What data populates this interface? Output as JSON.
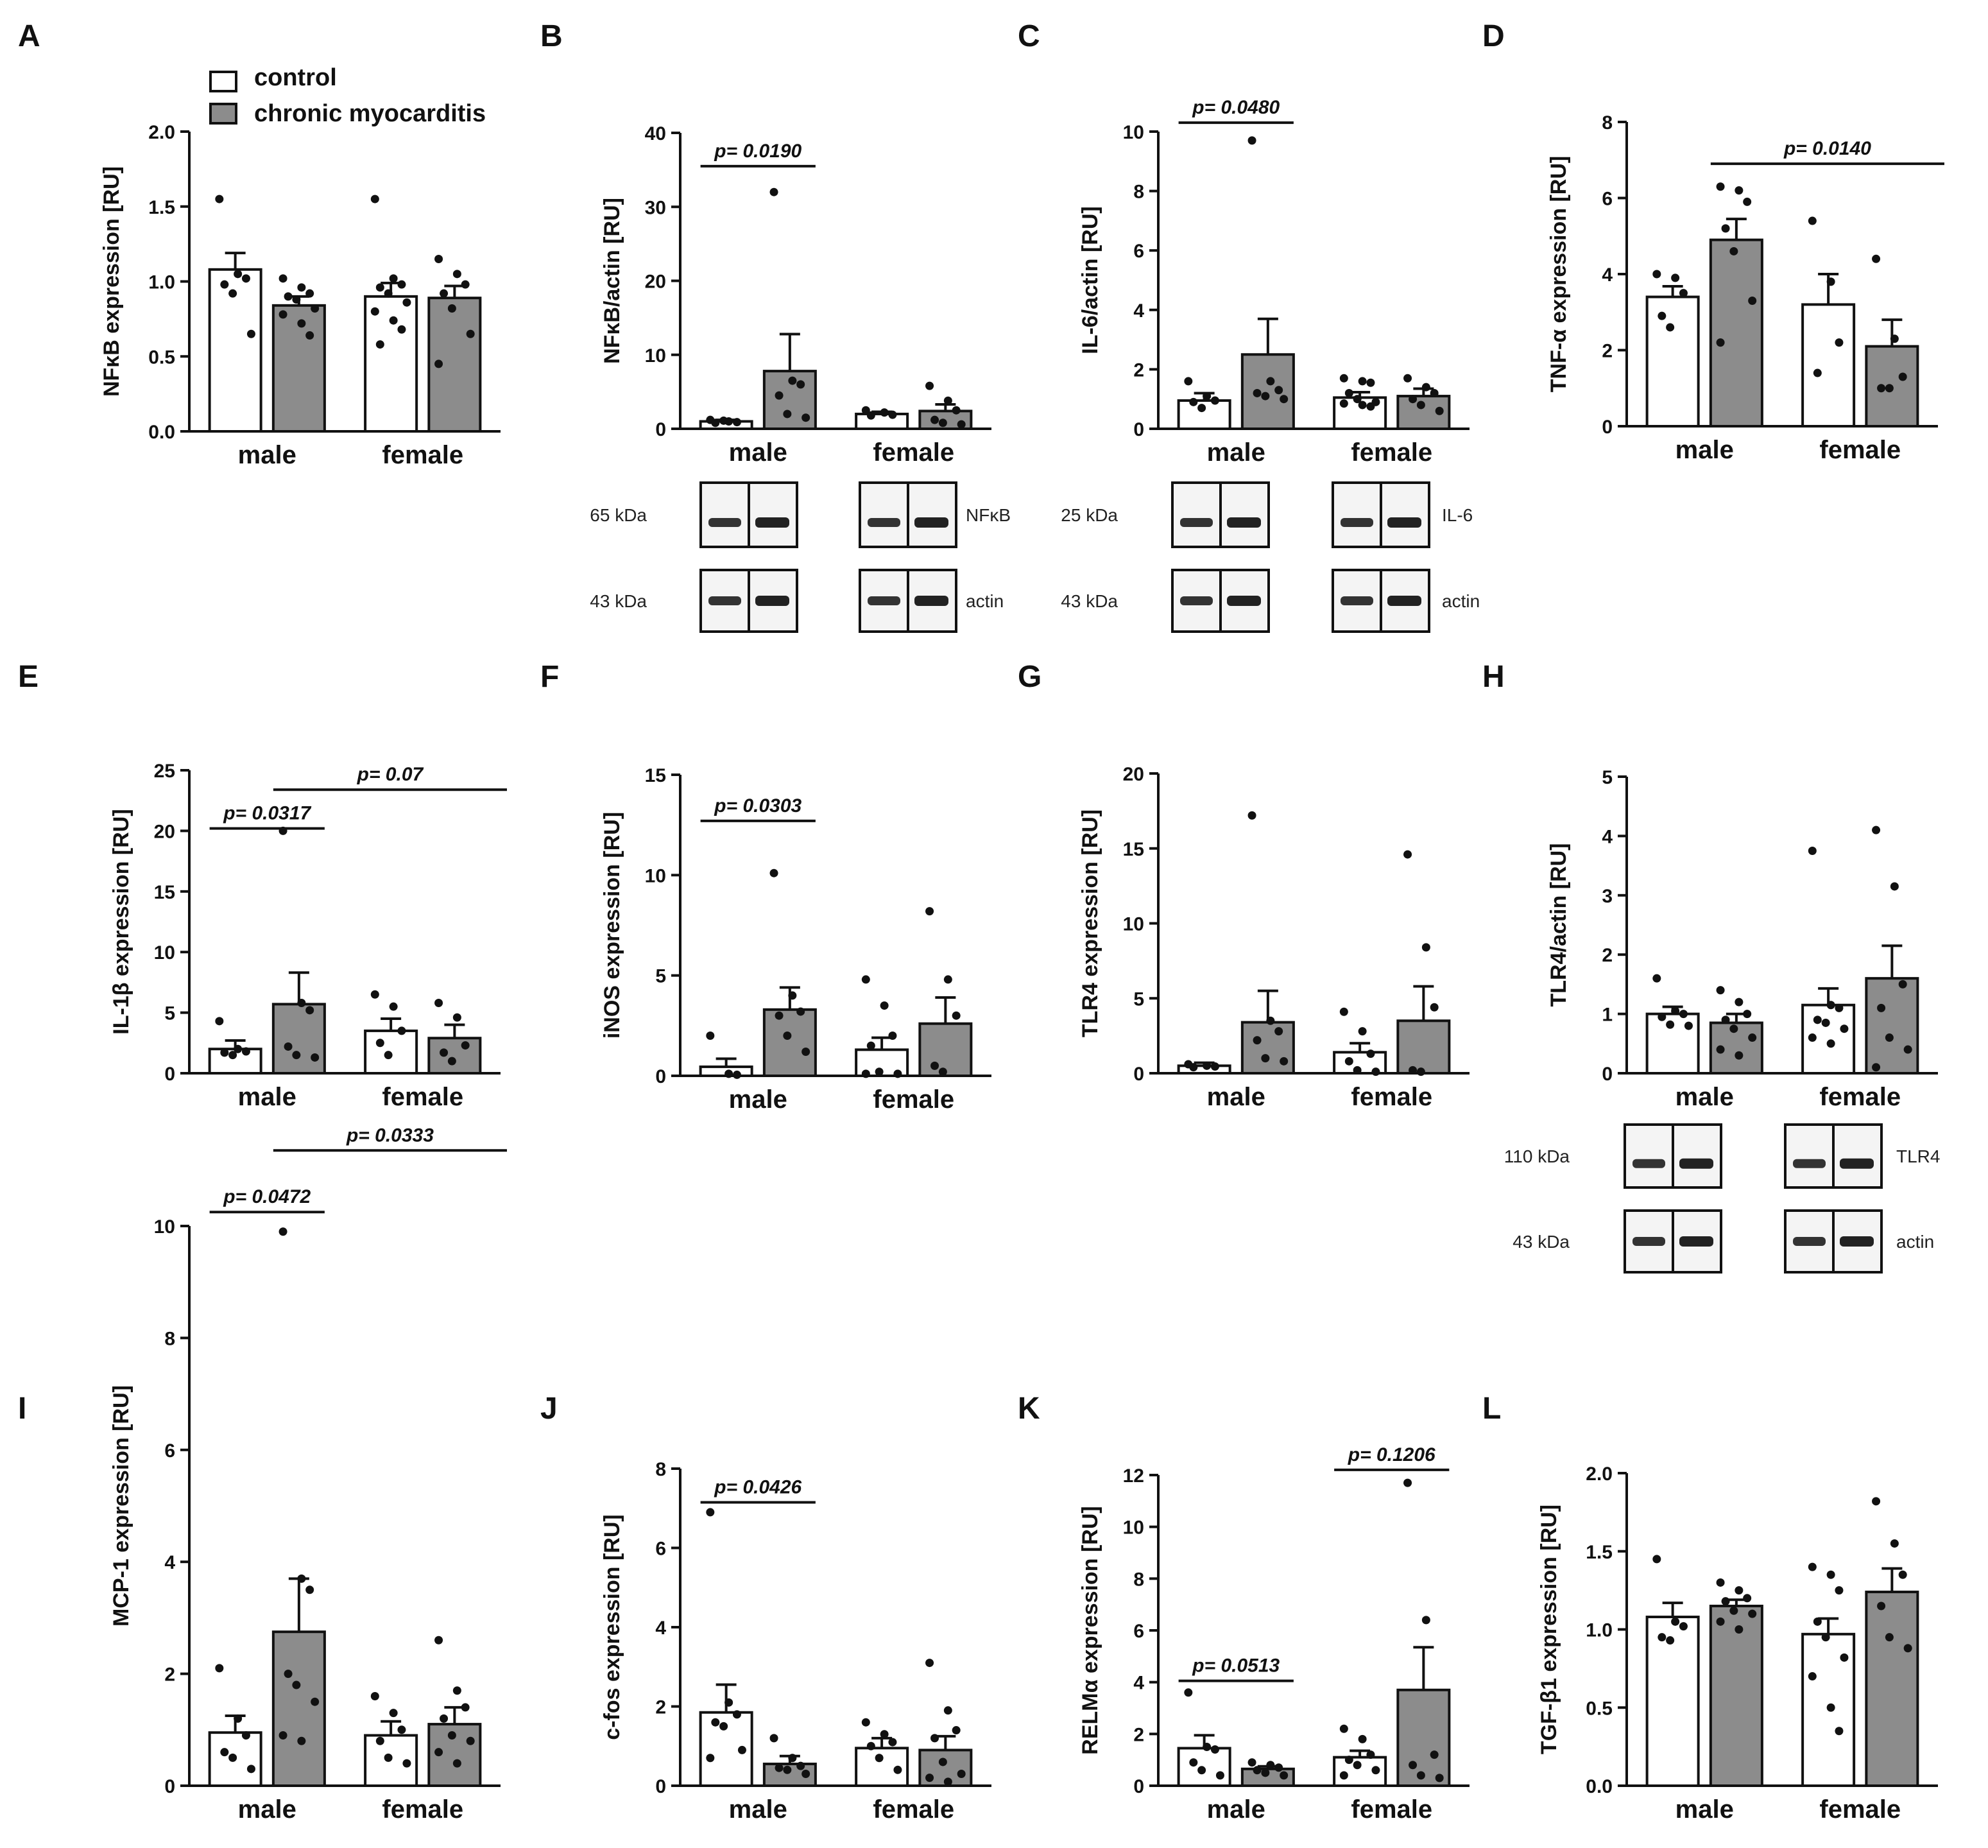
{
  "legend": {
    "control": "control",
    "treated": "chronic myocarditis"
  },
  "colors": {
    "control": "#ffffff",
    "treated": "#8c8c8c",
    "stroke": "#111111"
  },
  "chart_data": [
    {
      "panel": "A",
      "type": "bar",
      "ylabel": "NFκB expression [RU]",
      "yticks": [
        "0.0",
        "0.5",
        "1.0",
        "1.5",
        "2.0"
      ],
      "ylim": [
        0,
        2.0
      ],
      "categories": [
        "male",
        "female"
      ],
      "series": [
        {
          "name": "control",
          "values": [
            1.08,
            0.9
          ],
          "sem": [
            0.11,
            0.09
          ],
          "points": [
            [
              1.55,
              1.05,
              1.02,
              0.98,
              0.92,
              0.65
            ],
            [
              1.55,
              1.02,
              0.98,
              0.96,
              0.92,
              0.86,
              0.8,
              0.74,
              0.68,
              0.58
            ]
          ]
        },
        {
          "name": "chronic myocarditis",
          "values": [
            0.84,
            0.89
          ],
          "sem": [
            0.06,
            0.08
          ],
          "points": [
            [
              1.02,
              0.96,
              0.92,
              0.9,
              0.88,
              0.82,
              0.78,
              0.72,
              0.64
            ],
            [
              1.15,
              1.05,
              0.98,
              0.92,
              0.82,
              0.65,
              0.45
            ]
          ]
        }
      ],
      "pvalues": []
    },
    {
      "panel": "B",
      "type": "bar",
      "ylabel": "NFκB/actin [RU]",
      "yticks": [
        "0",
        "10",
        "20",
        "30",
        "40"
      ],
      "ylim": [
        0,
        40
      ],
      "categories": [
        "male",
        "female"
      ],
      "series": [
        {
          "name": "control",
          "values": [
            1.0,
            2.0
          ],
          "sem": [
            0.2,
            0.3
          ],
          "points": [
            [
              1.2,
              1.0,
              0.9,
              0.8,
              1.1
            ],
            [
              2.5,
              2.2,
              1.9,
              1.8
            ]
          ]
        },
        {
          "name": "chronic myocarditis",
          "values": [
            7.8,
            2.4
          ],
          "sem": [
            5.0,
            0.9
          ],
          "points": [
            [
              32.0,
              6.5,
              6.0,
              4.5,
              2.0,
              1.5
            ],
            [
              5.8,
              3.8,
              2.5,
              1.2,
              0.8,
              0.6
            ]
          ]
        }
      ],
      "pvalues": [
        {
          "text": "p= 0.0190",
          "from": [
            0,
            0
          ],
          "to": [
            0,
            1
          ],
          "y": 35.5
        }
      ]
    },
    {
      "panel": "C",
      "type": "bar",
      "ylabel": "IL-6/actin [RU]",
      "yticks": [
        "0",
        "2",
        "4",
        "6",
        "8",
        "10"
      ],
      "ylim": [
        0,
        10
      ],
      "categories": [
        "male",
        "female"
      ],
      "series": [
        {
          "name": "control",
          "values": [
            0.95,
            1.05
          ],
          "sem": [
            0.25,
            0.18
          ],
          "points": [
            [
              1.6,
              1.1,
              0.95,
              0.9,
              0.7
            ],
            [
              1.7,
              1.6,
              1.55,
              1.2,
              1.0,
              0.9,
              0.85,
              0.8,
              0.75
            ]
          ]
        },
        {
          "name": "chronic myocarditis",
          "values": [
            2.5,
            1.1
          ],
          "sem": [
            1.2,
            0.25
          ],
          "points": [
            [
              9.7,
              1.6,
              1.3,
              1.2,
              1.1,
              1.0
            ],
            [
              1.7,
              1.4,
              1.2,
              1.0,
              0.8,
              0.6
            ]
          ]
        }
      ],
      "pvalues": [
        {
          "text": "p= 0.0480",
          "from": [
            0,
            0
          ],
          "to": [
            0,
            1
          ],
          "y": 10.3
        }
      ]
    },
    {
      "panel": "D",
      "type": "bar",
      "ylabel": "TNF-α expression  [RU]",
      "yticks": [
        "0",
        "2",
        "4",
        "6",
        "8"
      ],
      "ylim": [
        0,
        8
      ],
      "categories": [
        "male",
        "female"
      ],
      "series": [
        {
          "name": "control",
          "values": [
            3.4,
            3.2
          ],
          "sem": [
            0.28,
            0.8
          ],
          "points": [
            [
              4.0,
              3.9,
              3.5,
              2.9,
              2.6
            ],
            [
              5.4,
              3.8,
              2.2,
              1.4
            ]
          ]
        },
        {
          "name": "chronic myocarditis",
          "values": [
            4.9,
            2.1
          ],
          "sem": [
            0.55,
            0.7
          ],
          "points": [
            [
              6.3,
              6.2,
              5.9,
              5.2,
              4.6,
              3.3,
              2.2
            ],
            [
              4.4,
              2.3,
              1.3,
              1.0,
              1.0
            ]
          ]
        }
      ],
      "pvalues": [
        {
          "text": "p= 0.0140",
          "from": [
            0,
            1
          ],
          "to": [
            1,
            1
          ],
          "y": 6.9
        }
      ]
    },
    {
      "panel": "E",
      "type": "bar",
      "ylabel": "IL-1β  expression [RU]",
      "yticks": [
        "0",
        "5",
        "10",
        "15",
        "20",
        "25"
      ],
      "ylim": [
        0,
        25
      ],
      "categories": [
        "male",
        "female"
      ],
      "series": [
        {
          "name": "control",
          "values": [
            2.0,
            3.5
          ],
          "sem": [
            0.7,
            1.0
          ],
          "points": [
            [
              4.3,
              2.0,
              1.8,
              1.7,
              1.5
            ],
            [
              6.5,
              5.5,
              3.5,
              2.5,
              1.5
            ]
          ]
        },
        {
          "name": "chronic myocarditis",
          "values": [
            5.7,
            2.9
          ],
          "sem": [
            2.6,
            1.1
          ],
          "points": [
            [
              20.0,
              5.8,
              5.2,
              2.2,
              1.5,
              1.3
            ],
            [
              5.8,
              4.6,
              2.3,
              1.7,
              1.0
            ]
          ]
        }
      ],
      "pvalues": [
        {
          "text": "p= 0.0317",
          "from": [
            0,
            0
          ],
          "to": [
            0,
            1
          ],
          "y": 20.2
        },
        {
          "text": "p= 0.07",
          "from": [
            0,
            1
          ],
          "to": [
            1,
            1
          ],
          "y": 23.4
        }
      ]
    },
    {
      "panel": "F",
      "type": "bar",
      "ylabel": "iNOS expression [RU]",
      "yticks": [
        "0",
        "5",
        "10",
        "15"
      ],
      "ylim": [
        0,
        15
      ],
      "categories": [
        "male",
        "female"
      ],
      "series": [
        {
          "name": "control",
          "values": [
            0.45,
            1.3
          ],
          "sem": [
            0.4,
            0.6
          ],
          "points": [
            [
              2.0,
              0.1,
              0.05
            ],
            [
              4.8,
              3.5,
              2.0,
              1.5,
              0.2,
              0.1,
              0.1
            ]
          ]
        },
        {
          "name": "chronic myocarditis",
          "values": [
            3.3,
            2.6
          ],
          "sem": [
            1.1,
            1.3
          ],
          "points": [
            [
              10.1,
              4.0,
              3.2,
              3.0,
              2.0,
              1.2
            ],
            [
              8.2,
              4.8,
              3.0,
              0.5,
              0.2
            ]
          ]
        }
      ],
      "pvalues": [
        {
          "text": "p= 0.0303",
          "from": [
            0,
            0
          ],
          "to": [
            0,
            1
          ],
          "y": 12.7
        }
      ]
    },
    {
      "panel": "G",
      "type": "bar",
      "ylabel": "TLR4 expression [RU]",
      "yticks": [
        "0",
        "5",
        "10",
        "15",
        "20"
      ],
      "ylim": [
        0,
        20
      ],
      "categories": [
        "male",
        "female"
      ],
      "series": [
        {
          "name": "control",
          "values": [
            0.5,
            1.4
          ],
          "sem": [
            0.2,
            0.6
          ],
          "points": [
            [
              0.6,
              0.5,
              0.45,
              0.4
            ],
            [
              4.1,
              2.8,
              1.3,
              0.8,
              0.2,
              0.1
            ]
          ]
        },
        {
          "name": "chronic myocarditis",
          "values": [
            3.4,
            3.5
          ],
          "sem": [
            2.1,
            2.3
          ],
          "points": [
            [
              17.2,
              3.5,
              2.8,
              2.2,
              1.0,
              0.8
            ],
            [
              14.6,
              8.4,
              4.4,
              0.2,
              0.1
            ]
          ]
        }
      ],
      "pvalues": []
    },
    {
      "panel": "H",
      "type": "bar",
      "ylabel": "TLR4/actin  [RU]",
      "yticks": [
        "0",
        "1",
        "2",
        "3",
        "4",
        "5"
      ],
      "ylim": [
        0,
        5
      ],
      "categories": [
        "male",
        "female"
      ],
      "series": [
        {
          "name": "control",
          "values": [
            1.0,
            1.15
          ],
          "sem": [
            0.12,
            0.28
          ],
          "points": [
            [
              1.6,
              1.05,
              1.0,
              0.95,
              0.82,
              0.8
            ],
            [
              3.75,
              1.15,
              1.1,
              0.9,
              0.85,
              0.75,
              0.6,
              0.5
            ]
          ]
        },
        {
          "name": "chronic myocarditis",
          "values": [
            0.85,
            1.6
          ],
          "sem": [
            0.15,
            0.55
          ],
          "points": [
            [
              1.4,
              1.2,
              1.0,
              0.9,
              0.75,
              0.6,
              0.4,
              0.3
            ],
            [
              4.1,
              3.15,
              1.5,
              1.1,
              0.6,
              0.4,
              0.1
            ]
          ]
        }
      ],
      "pvalues": []
    },
    {
      "panel": "I",
      "type": "bar",
      "ylabel": "MCP-1  expression [RU]",
      "yticks": [
        "0",
        "2",
        "4",
        "6",
        "8",
        "10"
      ],
      "ylim": [
        0,
        10
      ],
      "categories": [
        "male",
        "female"
      ],
      "series": [
        {
          "name": "control",
          "values": [
            0.95,
            0.9
          ],
          "sem": [
            0.3,
            0.25
          ],
          "points": [
            [
              2.1,
              1.2,
              0.9,
              0.6,
              0.5,
              0.3
            ],
            [
              1.6,
              1.3,
              1.0,
              0.8,
              0.5,
              0.4
            ]
          ]
        },
        {
          "name": "chronic myocarditis",
          "values": [
            2.75,
            1.1
          ],
          "sem": [
            0.95,
            0.3
          ],
          "points": [
            [
              9.9,
              3.7,
              3.5,
              2.0,
              1.8,
              1.5,
              0.9,
              0.8
            ],
            [
              2.6,
              1.7,
              1.4,
              1.2,
              0.9,
              0.8,
              0.6,
              0.4
            ]
          ]
        }
      ],
      "pvalues": [
        {
          "text": "p= 0.0472",
          "from": [
            0,
            0
          ],
          "to": [
            0,
            1
          ],
          "y": 10.25
        },
        {
          "text": "p= 0.0333",
          "from": [
            0,
            1
          ],
          "to": [
            1,
            1
          ],
          "y": 11.35
        }
      ]
    },
    {
      "panel": "J",
      "type": "bar",
      "ylabel": "c-fos expression [RU]",
      "yticks": [
        "0",
        "2",
        "4",
        "6",
        "8"
      ],
      "ylim": [
        0,
        8
      ],
      "categories": [
        "male",
        "female"
      ],
      "series": [
        {
          "name": "control",
          "values": [
            1.85,
            0.95
          ],
          "sem": [
            0.7,
            0.25
          ],
          "points": [
            [
              6.9,
              2.1,
              1.8,
              1.6,
              1.5,
              0.9,
              0.7
            ],
            [
              1.6,
              1.3,
              1.1,
              1.0,
              0.7,
              0.4
            ]
          ]
        },
        {
          "name": "chronic myocarditis",
          "values": [
            0.55,
            0.9
          ],
          "sem": [
            0.2,
            0.35
          ],
          "points": [
            [
              1.2,
              0.7,
              0.5,
              0.45,
              0.4,
              0.3
            ],
            [
              3.1,
              1.9,
              1.4,
              1.2,
              0.6,
              0.3,
              0.2,
              0.1
            ]
          ]
        }
      ],
      "pvalues": [
        {
          "text": "p= 0.0426",
          "from": [
            0,
            0
          ],
          "to": [
            0,
            1
          ],
          "y": 7.15
        }
      ]
    },
    {
      "panel": "K",
      "type": "bar",
      "ylabel": "RELMα expression [RU]",
      "yticks": [
        "0",
        "2",
        "4",
        "6",
        "8",
        "10",
        "12"
      ],
      "ylim": [
        0,
        12
      ],
      "categories": [
        "male",
        "female"
      ],
      "series": [
        {
          "name": "control",
          "values": [
            1.45,
            1.1
          ],
          "sem": [
            0.5,
            0.25
          ],
          "points": [
            [
              3.6,
              1.5,
              1.4,
              0.9,
              0.6,
              0.4
            ],
            [
              2.2,
              1.8,
              1.2,
              1.0,
              0.8,
              0.6,
              0.4
            ]
          ]
        },
        {
          "name": "chronic myocarditis",
          "values": [
            0.65,
            3.7
          ],
          "sem": [
            0.1,
            1.65
          ],
          "points": [
            [
              0.9,
              0.8,
              0.7,
              0.6,
              0.5,
              0.4
            ],
            [
              11.7,
              6.4,
              1.2,
              0.8,
              0.4,
              0.3
            ]
          ]
        }
      ],
      "pvalues": [
        {
          "text": "p= 0.0513",
          "from": [
            0,
            0
          ],
          "to": [
            0,
            1
          ],
          "y": 4.05
        },
        {
          "text": "p= 0.1206",
          "from": [
            1,
            0
          ],
          "to": [
            1,
            1
          ],
          "y": 12.2
        }
      ]
    },
    {
      "panel": "L",
      "type": "bar",
      "ylabel": "TGF-β1 expression  [RU]",
      "yticks": [
        "0.0",
        "0.5",
        "1.0",
        "1.5",
        "2.0"
      ],
      "ylim": [
        0,
        2.0
      ],
      "categories": [
        "male",
        "female"
      ],
      "series": [
        {
          "name": "control",
          "values": [
            1.08,
            0.97
          ],
          "sem": [
            0.09,
            0.1
          ],
          "points": [
            [
              1.45,
              1.05,
              1.02,
              0.95,
              0.93
            ],
            [
              1.4,
              1.35,
              1.25,
              1.05,
              0.95,
              0.82,
              0.7,
              0.5,
              0.35
            ]
          ]
        },
        {
          "name": "chronic myocarditis",
          "values": [
            1.15,
            1.24
          ],
          "sem": [
            0.04,
            0.15
          ],
          "points": [
            [
              1.3,
              1.25,
              1.2,
              1.18,
              1.12,
              1.1,
              1.05,
              1.0
            ],
            [
              1.82,
              1.55,
              1.35,
              1.15,
              0.95,
              0.88
            ]
          ]
        }
      ],
      "pvalues": []
    }
  ],
  "blots": [
    {
      "panel": "B",
      "rows": [
        {
          "kda": "65 kDa",
          "label": "NFκB"
        },
        {
          "kda": "43 kDa",
          "label": "actin"
        }
      ]
    },
    {
      "panel": "C",
      "rows": [
        {
          "kda": "25 kDa",
          "label": "IL-6"
        },
        {
          "kda": "43 kDa",
          "label": "actin"
        }
      ]
    },
    {
      "panel": "H",
      "rows": [
        {
          "kda": "110 kDa",
          "label": "TLR4"
        },
        {
          "kda": "43 kDa",
          "label": "actin"
        }
      ]
    }
  ]
}
